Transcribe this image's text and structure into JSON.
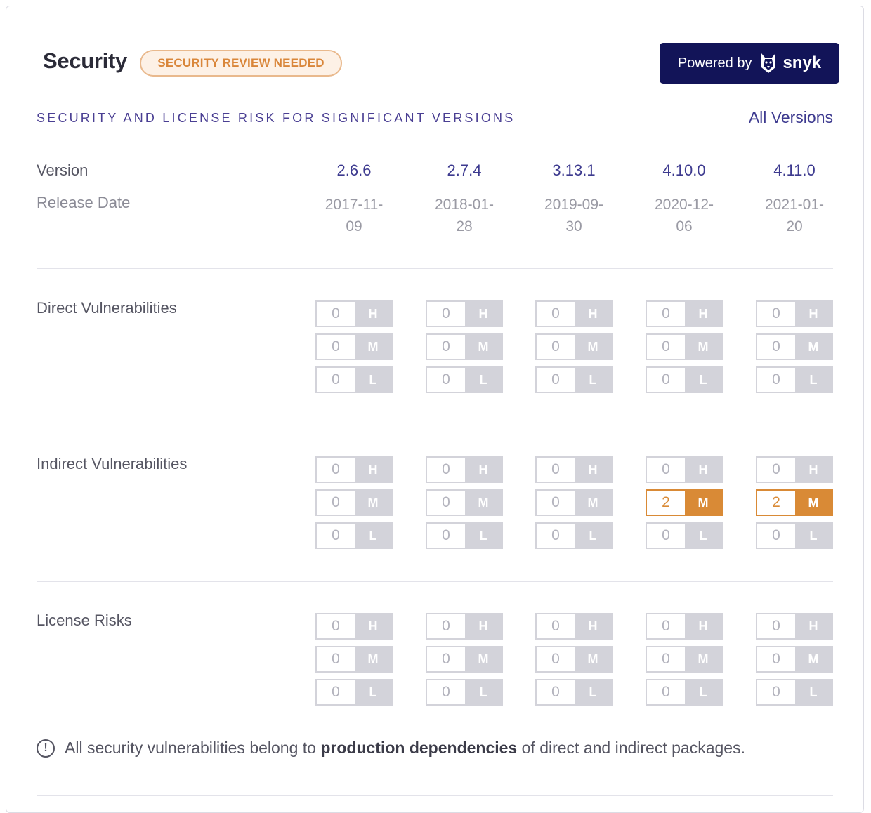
{
  "header": {
    "title": "Security",
    "badge": "SECURITY REVIEW NEEDED",
    "powered_by": "Powered by",
    "brand": "snyk"
  },
  "section": {
    "title": "SECURITY AND LICENSE RISK FOR SIGNIFICANT VERSIONS",
    "all_versions": "All Versions"
  },
  "labels": {
    "version": "Version",
    "release_date": "Release Date",
    "direct": "Direct Vulnerabilities",
    "indirect": "Indirect Vulnerabilities",
    "license": "License Risks"
  },
  "levels": [
    "H",
    "M",
    "L"
  ],
  "versions": [
    {
      "version": "2.6.6",
      "date_line1": "2017-11-",
      "date_line2": "09",
      "direct": [
        "0",
        "0",
        "0"
      ],
      "indirect": [
        "0",
        "0",
        "0"
      ],
      "license": [
        "0",
        "0",
        "0"
      ]
    },
    {
      "version": "2.7.4",
      "date_line1": "2018-01-",
      "date_line2": "28",
      "direct": [
        "0",
        "0",
        "0"
      ],
      "indirect": [
        "0",
        "0",
        "0"
      ],
      "license": [
        "0",
        "0",
        "0"
      ]
    },
    {
      "version": "3.13.1",
      "date_line1": "2019-09-",
      "date_line2": "30",
      "direct": [
        "0",
        "0",
        "0"
      ],
      "indirect": [
        "0",
        "0",
        "0"
      ],
      "license": [
        "0",
        "0",
        "0"
      ]
    },
    {
      "version": "4.10.0",
      "date_line1": "2020-12-",
      "date_line2": "06",
      "direct": [
        "0",
        "0",
        "0"
      ],
      "indirect": [
        "0",
        "2",
        "0"
      ],
      "license": [
        "0",
        "0",
        "0"
      ]
    },
    {
      "version": "4.11.0",
      "date_line1": "2021-01-",
      "date_line2": "20",
      "direct": [
        "0",
        "0",
        "0"
      ],
      "indirect": [
        "0",
        "2",
        "0"
      ],
      "license": [
        "0",
        "0",
        "0"
      ]
    }
  ],
  "note": {
    "before": "All security vulnerabilities belong to",
    "bold": "production dependencies",
    "after": "of direct and indirect packages."
  },
  "colors": {
    "accent": "#3d3a8f",
    "warning": "#d98a36",
    "badge_bg": "#fdf1e6",
    "snyk_bg": "#121458",
    "pill_gray": "#d3d3da"
  }
}
